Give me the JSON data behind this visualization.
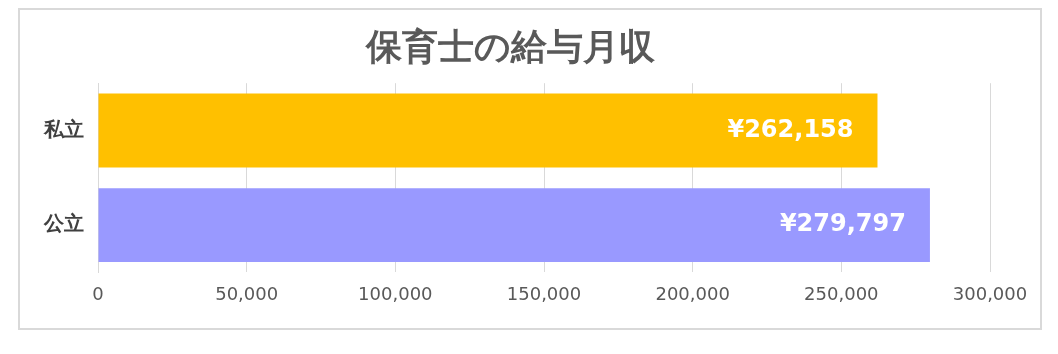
{
  "chart_data": {
    "type": "bar",
    "orientation": "horizontal",
    "title": "保育士の給与月収",
    "categories": [
      "私立",
      "公立"
    ],
    "values": [
      262158,
      279797
    ],
    "colors": [
      "#ffc000",
      "#9999ff"
    ],
    "value_labels": [
      "¥262,158",
      "¥279,797"
    ],
    "xlim": [
      0,
      300000
    ],
    "xticks": [
      0,
      {
        "value": 50000,
        "label": "50,000"
      },
      {
        "value": 100000,
        "label": "100,000"
      },
      {
        "value": 150000,
        "label": "150,000"
      },
      {
        "value": 200000,
        "label": "200,000"
      },
      {
        "value": 250000,
        "label": "250,000"
      },
      {
        "value": 300000,
        "label": "300,000"
      }
    ],
    "grid": "x",
    "legend": false
  }
}
